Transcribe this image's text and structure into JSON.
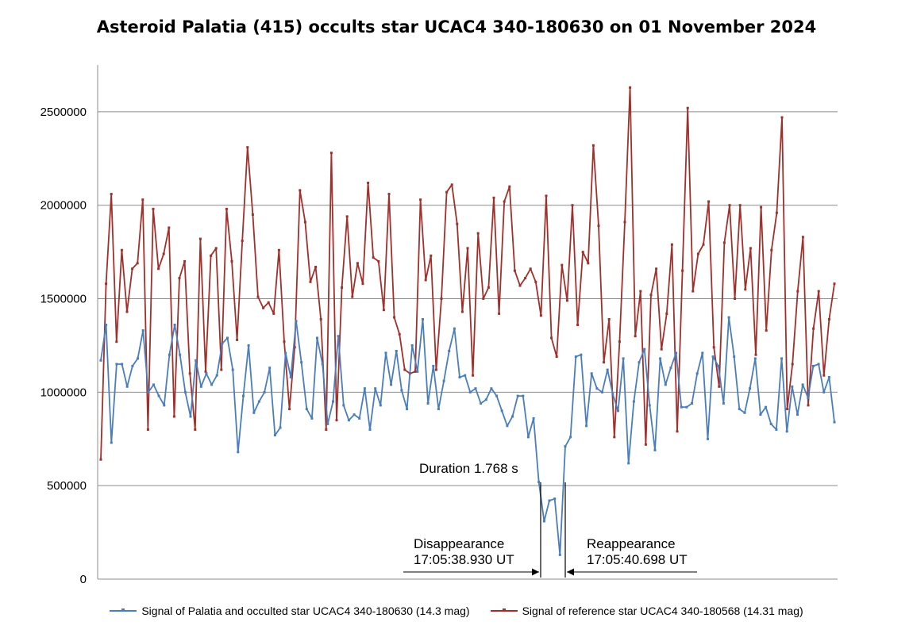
{
  "chart_data": {
    "type": "line",
    "title": "Asteroid Palatia (415) occults star UCAC4 340-180630 on 01 November 2024",
    "xlabel": "",
    "ylabel": "",
    "ylim": [
      0,
      2750000
    ],
    "yticks": [
      0,
      500000,
      1000000,
      1500000,
      2000000,
      2500000
    ],
    "ytick_labels": [
      "0",
      "500000",
      "1000000",
      "1500000",
      "2000000",
      "2500000"
    ],
    "grid": "horizontal",
    "legend_position": "bottom",
    "series": [
      {
        "name": "Signal of Palatia and occulted star UCAC4 340-180630 (14.3 mag)",
        "color": "#4a7ebb",
        "values": [
          1170000,
          1360000,
          730000,
          1150000,
          1150000,
          1030000,
          1140000,
          1180000,
          1330000,
          1000000,
          1040000,
          980000,
          930000,
          1200000,
          1360000,
          1200000,
          1000000,
          870000,
          1170000,
          1030000,
          1100000,
          1040000,
          1090000,
          1260000,
          1290000,
          1120000,
          680000,
          980000,
          1250000,
          890000,
          950000,
          1000000,
          1130000,
          770000,
          810000,
          1210000,
          1080000,
          1380000,
          1160000,
          910000,
          860000,
          1290000,
          1150000,
          830000,
          950000,
          1300000,
          930000,
          850000,
          880000,
          860000,
          1020000,
          800000,
          1020000,
          930000,
          1210000,
          1040000,
          1220000,
          1010000,
          910000,
          1250000,
          1110000,
          1390000,
          940000,
          1140000,
          910000,
          1060000,
          1220000,
          1340000,
          1080000,
          1090000,
          1000000,
          1020000,
          940000,
          960000,
          1020000,
          980000,
          900000,
          820000,
          870000,
          980000,
          980000,
          760000,
          860000,
          520000,
          310000,
          420000,
          430000,
          130000,
          710000,
          760000,
          1190000,
          1200000,
          820000,
          1100000,
          1020000,
          1000000,
          1120000,
          990000,
          900000,
          1180000,
          620000,
          950000,
          1160000,
          1230000,
          930000,
          690000,
          1180000,
          1040000,
          1130000,
          1210000,
          920000,
          920000,
          940000,
          1100000,
          1210000,
          750000,
          1190000,
          1140000,
          940000,
          1400000,
          1190000,
          910000,
          890000,
          1020000,
          1180000,
          880000,
          920000,
          830000,
          800000,
          1180000,
          790000,
          1030000,
          880000,
          1040000,
          970000,
          1140000,
          1150000,
          1000000,
          1080000,
          840000
        ]
      },
      {
        "name": "Signal of reference star UCAC4 340-180568 (14.31 mag)",
        "color": "#a0302c",
        "values": [
          640000,
          1580000,
          2060000,
          1270000,
          1760000,
          1430000,
          1660000,
          1690000,
          2030000,
          800000,
          1980000,
          1660000,
          1740000,
          1880000,
          870000,
          1610000,
          1700000,
          1100000,
          800000,
          1820000,
          1110000,
          1730000,
          1770000,
          1120000,
          1980000,
          1700000,
          1280000,
          1810000,
          2310000,
          1950000,
          1510000,
          1450000,
          1480000,
          1420000,
          1760000,
          1270000,
          910000,
          1240000,
          2080000,
          1910000,
          1590000,
          1670000,
          1390000,
          800000,
          2280000,
          850000,
          1560000,
          1940000,
          1510000,
          1690000,
          1580000,
          2120000,
          1720000,
          1700000,
          1440000,
          2060000,
          1400000,
          1310000,
          1120000,
          1100000,
          1110000,
          2030000,
          1600000,
          1730000,
          1120000,
          1500000,
          2070000,
          2110000,
          1900000,
          1430000,
          1770000,
          1090000,
          1850000,
          1500000,
          1560000,
          2040000,
          1420000,
          2020000,
          2100000,
          1650000,
          1570000,
          1610000,
          1660000,
          1590000,
          1410000,
          2050000,
          1290000,
          1190000,
          1680000,
          1490000,
          2000000,
          1360000,
          1750000,
          1690000,
          2320000,
          1890000,
          1160000,
          1390000,
          760000,
          1270000,
          1910000,
          2630000,
          1300000,
          1540000,
          720000,
          1520000,
          1660000,
          1230000,
          1420000,
          1790000,
          790000,
          1650000,
          2520000,
          1540000,
          1740000,
          1790000,
          2020000,
          1240000,
          1030000,
          1800000,
          2000000,
          1500000,
          2000000,
          1550000,
          1770000,
          1200000,
          1990000,
          1330000,
          1760000,
          1960000,
          2470000,
          910000,
          1150000,
          1540000,
          1830000,
          930000,
          1340000,
          1540000,
          1090000,
          1390000,
          1580000
        ]
      }
    ],
    "annotations": {
      "duration": "Duration 1.768 s",
      "disappearance_label": "Disappearance",
      "disappearance_time": "17:05:38.930 UT",
      "reappearance_label": "Reappearance",
      "reappearance_time": "17:05:40.698 UT"
    }
  }
}
